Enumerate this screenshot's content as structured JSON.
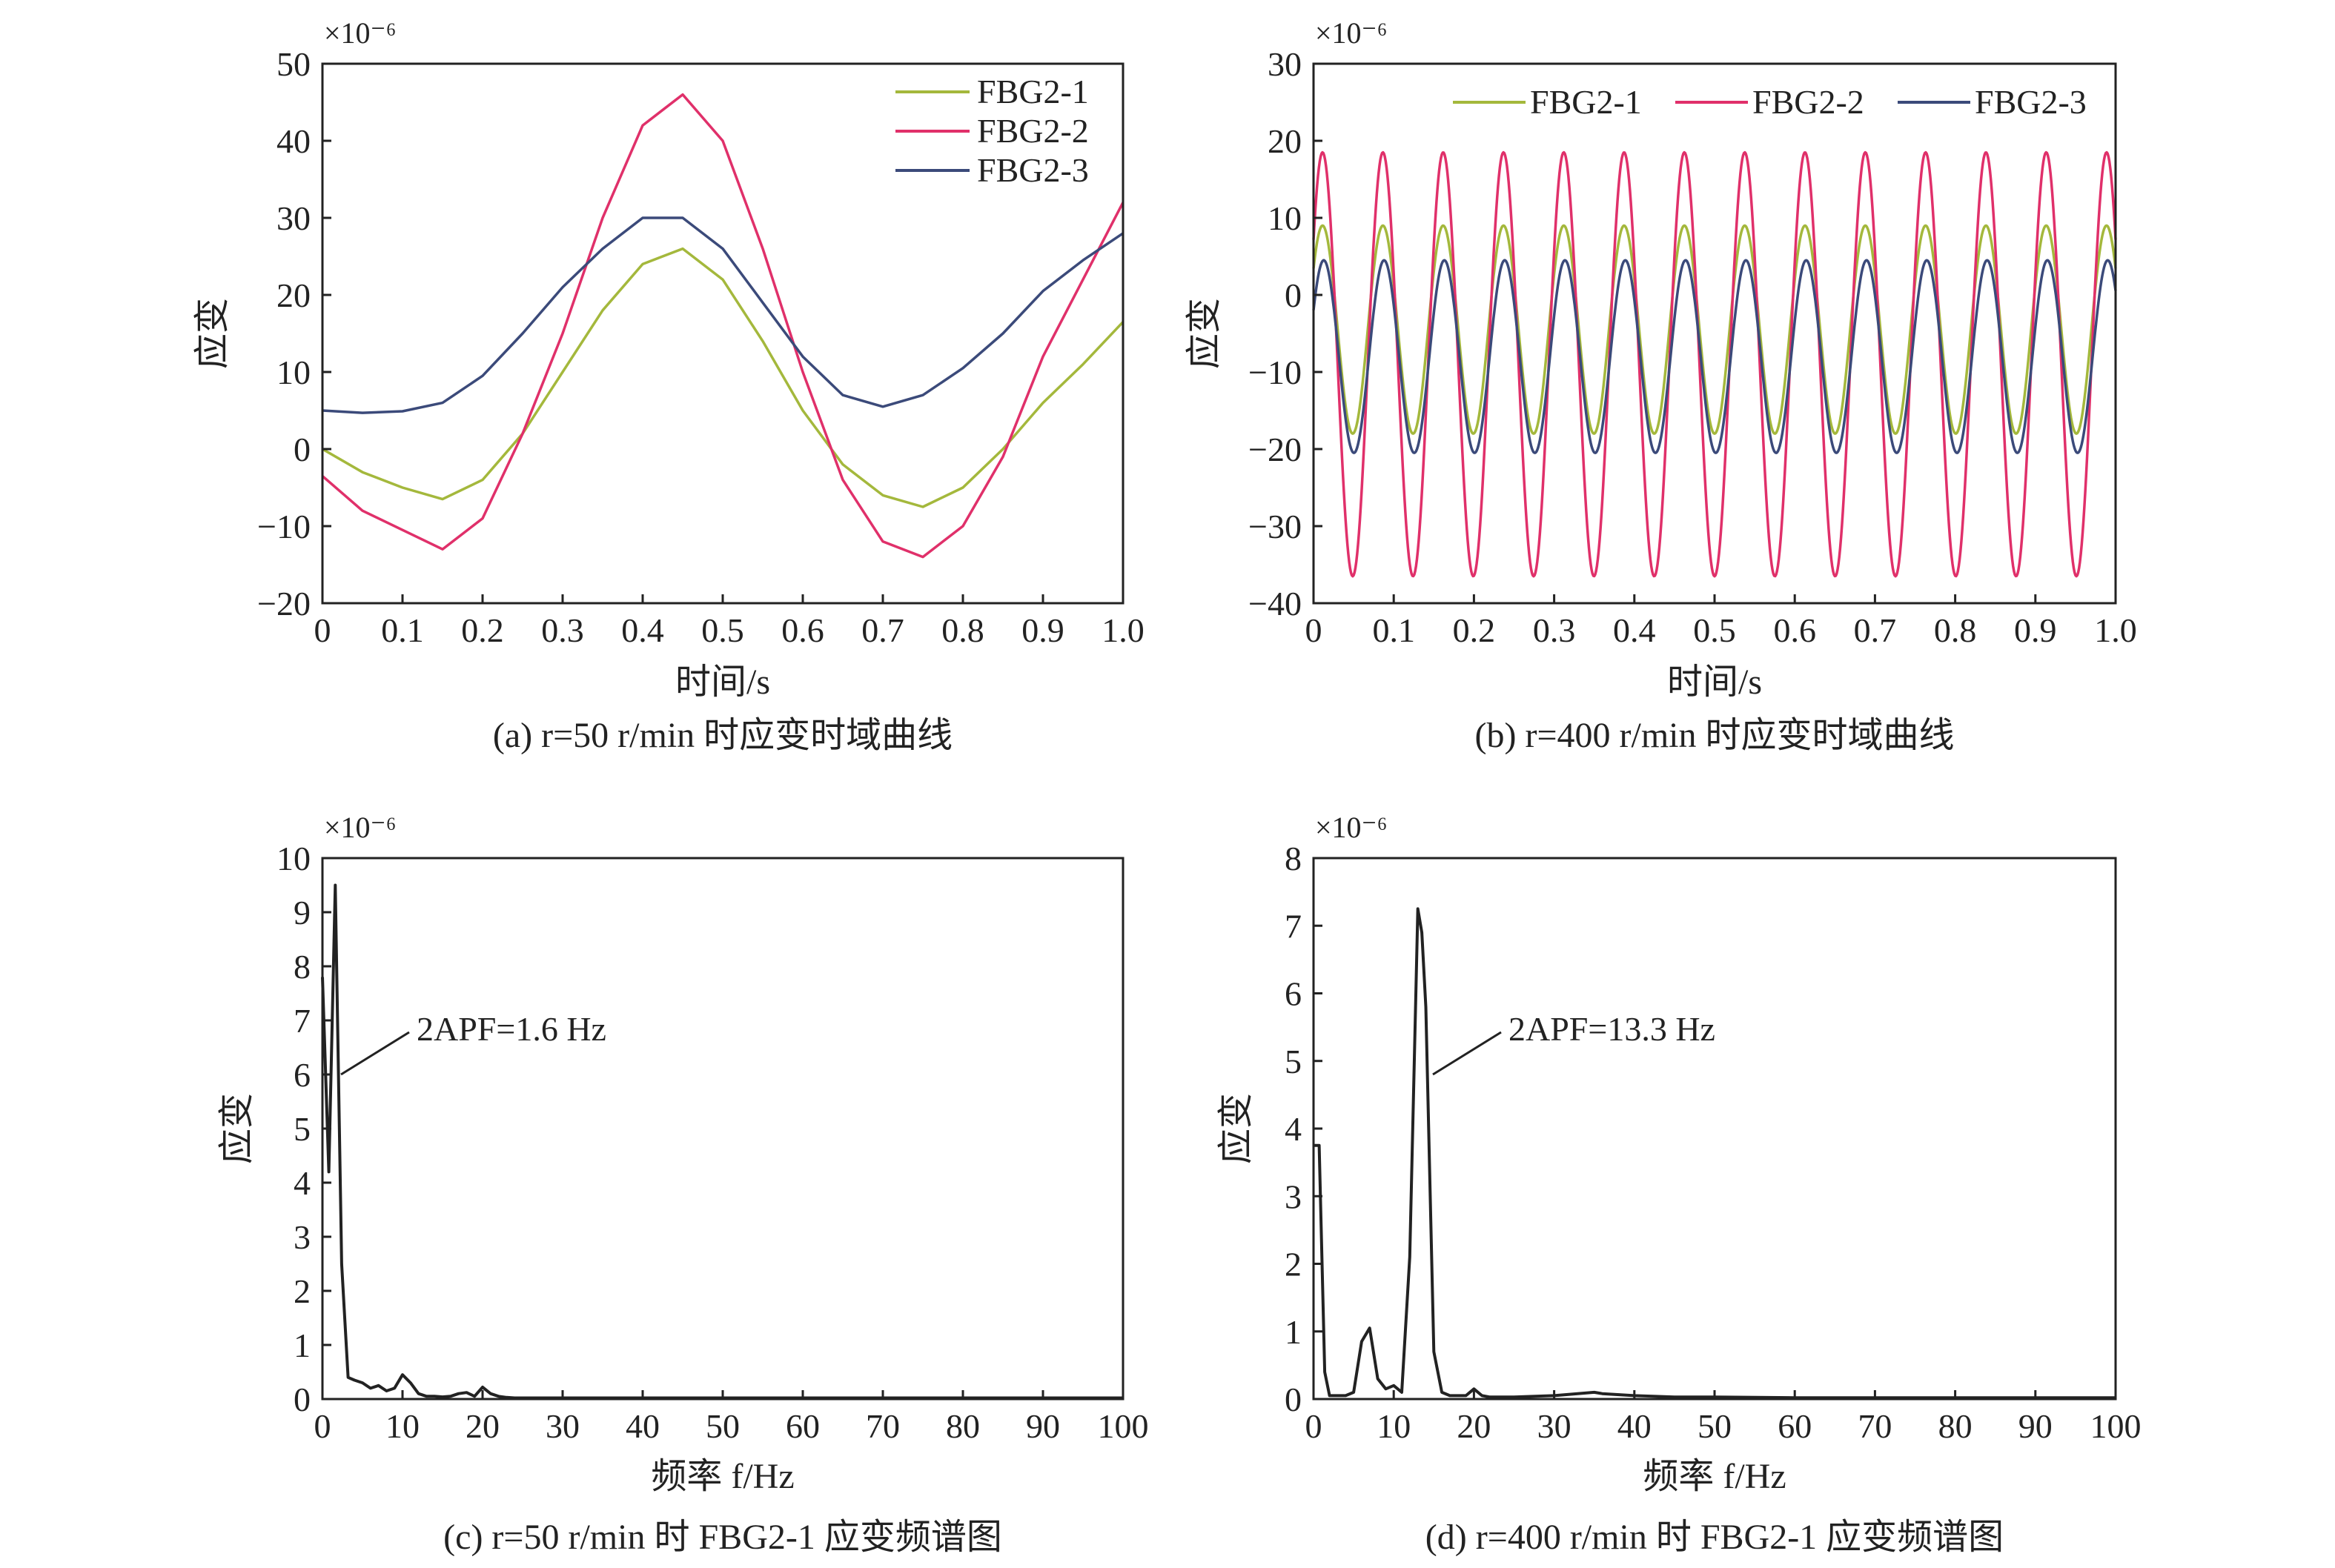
{
  "chart_data": [
    {
      "type": "line",
      "caption": "(a) r=50 r/min 时应变时域曲线",
      "xlabel": "时间/s",
      "ylabel": "应变",
      "y_multiplier": "×10⁻⁶",
      "xlim": [
        0,
        1.0
      ],
      "ylim": [
        -20,
        50
      ],
      "xticks": [
        "0",
        "0.1",
        "0.2",
        "0.3",
        "0.4",
        "0.5",
        "0.6",
        "0.7",
        "0.8",
        "0.9",
        "1.0"
      ],
      "yticks": [
        "−20",
        "−10",
        "0",
        "10",
        "20",
        "30",
        "40",
        "50"
      ],
      "legend_position": "top-right",
      "colors": [
        "#a4b83c",
        "#e0306a",
        "#3b4a7a"
      ],
      "series": [
        {
          "name": "FBG2-1",
          "x": [
            0,
            0.05,
            0.1,
            0.15,
            0.2,
            0.25,
            0.3,
            0.35,
            0.4,
            0.45,
            0.5,
            0.55,
            0.6,
            0.65,
            0.7,
            0.75,
            0.8,
            0.85,
            0.9,
            0.95,
            1.0
          ],
          "values": [
            0,
            -3,
            -5,
            -6.5,
            -4,
            2,
            10,
            18,
            24,
            26,
            22,
            14,
            5,
            -2,
            -6,
            -7.5,
            -5,
            0,
            6,
            11,
            16.5
          ]
        },
        {
          "name": "FBG2-2",
          "x": [
            0,
            0.05,
            0.1,
            0.15,
            0.2,
            0.25,
            0.3,
            0.35,
            0.4,
            0.45,
            0.5,
            0.55,
            0.6,
            0.65,
            0.7,
            0.75,
            0.8,
            0.85,
            0.9,
            0.95,
            1.0
          ],
          "values": [
            -3.5,
            -8,
            -10.5,
            -13,
            -9,
            2,
            15,
            30,
            42,
            46,
            40,
            26,
            10,
            -4,
            -12,
            -14,
            -10,
            -1,
            12,
            22,
            32
          ]
        },
        {
          "name": "FBG2-3",
          "x": [
            0,
            0.05,
            0.1,
            0.15,
            0.2,
            0.25,
            0.3,
            0.35,
            0.4,
            0.45,
            0.5,
            0.55,
            0.6,
            0.65,
            0.7,
            0.75,
            0.8,
            0.85,
            0.9,
            0.95,
            1.0
          ],
          "values": [
            5,
            4.7,
            4.9,
            6,
            9.5,
            15,
            21,
            26,
            30,
            30,
            26,
            19,
            12,
            7,
            5.5,
            7,
            10.5,
            15,
            20.5,
            24.5,
            28
          ]
        }
      ]
    },
    {
      "type": "line",
      "caption": "(b) r=400 r/min 时应变时域曲线",
      "xlabel": "时间/s",
      "ylabel": "应变",
      "y_multiplier": "×10⁻⁶",
      "xlim": [
        0,
        1.0
      ],
      "ylim": [
        -40,
        30
      ],
      "xticks": [
        "0",
        "0.1",
        "0.2",
        "0.3",
        "0.4",
        "0.5",
        "0.6",
        "0.7",
        "0.8",
        "0.9",
        "1.0"
      ],
      "yticks": [
        "−40",
        "−30",
        "−20",
        "−10",
        "0",
        "10",
        "20",
        "30"
      ],
      "legend_position": "top",
      "colors": [
        "#a4b83c",
        "#e0306a",
        "#3b4a7a"
      ],
      "oscillation_frequency_hz": 13.3,
      "series": [
        {
          "name": "FBG2-1",
          "amplitude": 13.5,
          "offset": -4.5,
          "phase_turns": 0.1
        },
        {
          "name": "FBG2-2",
          "amplitude": 27.5,
          "offset": -9,
          "phase_turns": 0.1
        },
        {
          "name": "FBG2-3",
          "amplitude": 12.5,
          "offset": -8,
          "phase_turns": 0.08
        }
      ]
    },
    {
      "type": "line",
      "caption": "(c) r=50 r/min 时 FBG2-1 应变频谱图",
      "xlabel": "频率 f/Hz",
      "ylabel": "应变",
      "y_multiplier": "×10⁻⁶",
      "xlim": [
        0,
        100
      ],
      "ylim": [
        0,
        10
      ],
      "xticks": [
        "0",
        "10",
        "20",
        "30",
        "40",
        "50",
        "60",
        "70",
        "80",
        "90",
        "100"
      ],
      "yticks": [
        "0",
        "1",
        "2",
        "3",
        "4",
        "5",
        "6",
        "7",
        "8",
        "9",
        "10"
      ],
      "colors": [
        "#222222"
      ],
      "annotation": {
        "text": "2APF=1.6 Hz",
        "x": 2.2,
        "y": 6.0
      },
      "series": [
        {
          "name": "FBG2-1",
          "x": [
            0,
            0.8,
            1.6,
            2.4,
            3.2,
            4,
            5,
            6,
            7,
            8,
            9,
            10,
            11,
            12,
            13,
            14,
            15,
            16,
            17,
            18,
            19,
            20,
            21,
            22,
            23,
            24,
            30,
            40,
            50,
            60,
            70,
            80,
            90,
            100
          ],
          "values": [
            7.8,
            4.2,
            9.5,
            2.5,
            0.4,
            0.35,
            0.3,
            0.2,
            0.25,
            0.15,
            0.2,
            0.45,
            0.3,
            0.1,
            0.05,
            0.05,
            0.04,
            0.05,
            0.1,
            0.12,
            0.05,
            0.22,
            0.1,
            0.05,
            0.03,
            0.02,
            0.02,
            0.02,
            0.02,
            0.02,
            0.02,
            0.02,
            0.02,
            0.02
          ]
        }
      ]
    },
    {
      "type": "line",
      "caption": "(d) r=400 r/min 时 FBG2-1 应变频谱图",
      "xlabel": "频率 f/Hz",
      "ylabel": "应变",
      "y_multiplier": "×10⁻⁶",
      "xlim": [
        0,
        100
      ],
      "ylim": [
        0,
        8
      ],
      "xticks": [
        "0",
        "10",
        "20",
        "30",
        "40",
        "50",
        "60",
        "70",
        "80",
        "90",
        "100"
      ],
      "yticks": [
        "0",
        "1",
        "2",
        "3",
        "4",
        "5",
        "6",
        "7",
        "8"
      ],
      "colors": [
        "#222222"
      ],
      "annotation": {
        "text": "2APF=13.3 Hz",
        "x": 14.8,
        "y": 4.8
      },
      "series": [
        {
          "name": "FBG2-1",
          "x": [
            0,
            0.7,
            1.4,
            2,
            3,
            4,
            5,
            6,
            7,
            8,
            9,
            10,
            11,
            12,
            13,
            13.5,
            14,
            15,
            16,
            17,
            18,
            19,
            20,
            21,
            22,
            25,
            30,
            35,
            36,
            40,
            45,
            50,
            60,
            70,
            80,
            90,
            100
          ],
          "values": [
            3.75,
            3.75,
            0.4,
            0.05,
            0.05,
            0.05,
            0.1,
            0.85,
            1.05,
            0.3,
            0.15,
            0.2,
            0.1,
            2.1,
            7.25,
            6.9,
            5.8,
            0.7,
            0.1,
            0.05,
            0.05,
            0.05,
            0.15,
            0.05,
            0.03,
            0.03,
            0.05,
            0.1,
            0.08,
            0.05,
            0.03,
            0.03,
            0.02,
            0.02,
            0.02,
            0.02,
            0.02
          ]
        }
      ]
    }
  ]
}
